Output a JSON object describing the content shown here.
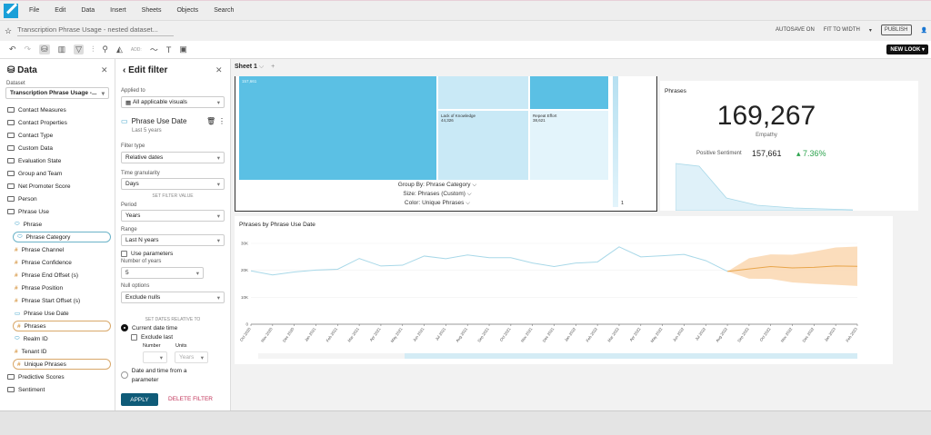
{
  "menu": [
    "File",
    "Edit",
    "Data",
    "Insert",
    "Sheets",
    "Objects",
    "Search"
  ],
  "doc_title": "Transcription Phrase Usage - nested dataset...",
  "autosave": "AUTOSAVE ON",
  "fit": "FIT TO WIDTH",
  "publish": "PUBLISH",
  "new_look": "NEW LOOK",
  "toolbar_add": "ADD:",
  "data_panel": {
    "title": "Data",
    "dataset_label": "Dataset",
    "dataset": "Transcription Phrase Usage -...",
    "folders": [
      "Contact Measures",
      "Contact Properties",
      "Contact Type",
      "Custom Data",
      "Evaluation State",
      "Group and Team",
      "Net Promoter Score",
      "Person",
      "Phrase Use"
    ],
    "fields": [
      {
        "name": "Phrase",
        "type": "dim"
      },
      {
        "name": "Phrase Category",
        "type": "dim"
      },
      {
        "name": "Phrase Channel",
        "type": "measure"
      },
      {
        "name": "Phrase Confidence",
        "type": "measure"
      },
      {
        "name": "Phrase End Offset (s)",
        "type": "measure"
      },
      {
        "name": "Phrase Position",
        "type": "measure"
      },
      {
        "name": "Phrase Start Offset (s)",
        "type": "measure"
      },
      {
        "name": "Phrase Use Date",
        "type": "date"
      },
      {
        "name": "Phrases",
        "type": "measure"
      },
      {
        "name": "Realm ID",
        "type": "dim"
      },
      {
        "name": "Tenant ID",
        "type": "measure"
      },
      {
        "name": "Unique Phrases",
        "type": "measure"
      }
    ],
    "folders_after": [
      "Predictive Scores",
      "Sentiment"
    ]
  },
  "filter": {
    "title": "Edit filter",
    "applied_to_label": "Applied to",
    "applied_to": "All applicable visuals",
    "field": "Phrase Use Date",
    "summary": "Last 5 years",
    "filter_type_label": "Filter type",
    "filter_type": "Relative dates",
    "granularity_label": "Time granularity",
    "granularity": "Days",
    "set_value": "SET FILTER VALUE",
    "period_label": "Period",
    "period": "Years",
    "range_label": "Range",
    "range": "Last N years",
    "use_params": "Use parameters",
    "n_label": "Number of years",
    "n_value": "5",
    "null_label": "Null options",
    "null_value": "Exclude nulls",
    "relative_to": "SET DATES RELATIVE TO",
    "current": "Current date time",
    "exclude_last": "Exclude last",
    "number_label": "Number",
    "units_label": "Units",
    "units": "Years",
    "param_option": "Date and time from a parameter",
    "apply": "APPLY",
    "delete": "DELETE FILTER"
  },
  "sheet": {
    "tab": "Sheet 1",
    "add": "+"
  },
  "treemap": {
    "top_value": "157,661",
    "cells": [
      {
        "label": "Lack of Knowledge",
        "value": "44,326"
      },
      {
        "label": "Repeat Effort",
        "value": "38,621"
      }
    ],
    "group_by": "Group By: Phrase Category",
    "size": "Size: Phrases (Custom)",
    "color": "Color: Unique Phrases",
    "legend_value": "1"
  },
  "kpi": {
    "title": "Phrases",
    "value": "169,267",
    "sublabel": "Empathy",
    "compare_label": "Positive Sentiment",
    "compare_value": "157,661",
    "change": "7.36%",
    "change_color": "#2ea44f"
  },
  "chart_data": {
    "type": "line",
    "title": "Phrases by Phrase Use Date",
    "ylim": [
      0,
      30000
    ],
    "yticks": [
      "0",
      "10K",
      "20K",
      "30K"
    ],
    "categories": [
      "Oct 2020",
      "Nov 2020",
      "Dec 2020",
      "Jan 2021",
      "Feb 2021",
      "Mar 2021",
      "Apr 2021",
      "May 2021",
      "Jun 2021",
      "Jul 2021",
      "Aug 2021",
      "Sep 2021",
      "Oct 2021",
      "Nov 2021",
      "Dec 2021",
      "Jan 2022",
      "Feb 2022",
      "Mar 2022",
      "Apr 2022",
      "May 2022",
      "Jun 2022",
      "Jul 2022",
      "Aug 2022",
      "Sep 2022",
      "Oct 2022",
      "Nov 2022",
      "Dec 2022",
      "Jan 2023",
      "Feb 2023"
    ],
    "actual": [
      19800,
      18300,
      19400,
      20100,
      20400,
      24400,
      21600,
      21900,
      25300,
      24300,
      25700,
      24700,
      24700,
      22700,
      21400,
      22700,
      23100,
      28700,
      25000,
      25400,
      25900,
      23600,
      19600
    ],
    "forecast": {
      "start_index": 22,
      "values": [
        19600,
        20500,
        21400,
        20900,
        21100,
        21600,
        21500
      ],
      "upper": [
        19600,
        24500,
        25900,
        25800,
        27000,
        28500,
        28800
      ],
      "lower": [
        19600,
        16900,
        16800,
        15500,
        15000,
        14600,
        14200
      ]
    },
    "colors": {
      "actual": "#a8d8e8",
      "forecast": "#e8a54a",
      "band": "#fbd9b5"
    }
  }
}
